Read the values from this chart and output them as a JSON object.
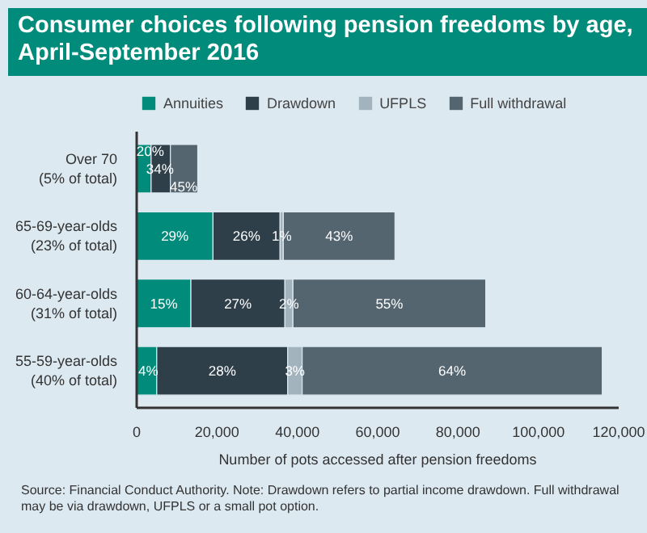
{
  "chart_data": {
    "type": "bar",
    "orientation": "horizontal",
    "stacked": true,
    "title": "Consumer choices following pension freedoms by age, April-September 2016",
    "categories": [
      "Over 70\n(5% of total)",
      "65-69-year-olds\n(23% of total)",
      "60-64-year-olds\n(31% of total)",
      "55-59-year-olds\n(40% of total)"
    ],
    "series": [
      {
        "name": "Annuities",
        "color": "#008b7a",
        "values": [
          3600,
          19000,
          13500,
          5000
        ]
      },
      {
        "name": "Drawdown",
        "color": "#2e3f4a",
        "values": [
          4800,
          16700,
          23400,
          32600
        ]
      },
      {
        "name": "UFPLS",
        "color": "#a3b3bd",
        "values": [
          null,
          800,
          2000,
          3600
        ]
      },
      {
        "name": "Full withdrawal",
        "color": "#546570",
        "values": [
          6800,
          27800,
          48000,
          74700
        ]
      }
    ],
    "xlim": [
      0,
      120000
    ],
    "xticks": [
      {
        "value": 0,
        "label": "0"
      },
      {
        "value": 20000,
        "label": "20,000"
      },
      {
        "value": 40000,
        "label": "40,000"
      },
      {
        "value": 60000,
        "label": "60,000"
      },
      {
        "value": 80000,
        "label": "80,000"
      },
      {
        "value": 100000,
        "label": "100,000"
      },
      {
        "value": 120000,
        "label": "120,000"
      }
    ],
    "xlabel": "Number of pots accessed after pension freedoms",
    "legend": "top",
    "grid": false,
    "annotations": [
      {
        "text": "20%",
        "x": 3400,
        "y": "Over 70\n(5% of total)"
      },
      {
        "text": "34%",
        "x": 5800,
        "y": "Over 70\n(5% of total)"
      },
      {
        "text": "45%",
        "x": 11700,
        "y": "Over 70\n(5% of total)"
      },
      {
        "text": "29%",
        "x": 9500,
        "y": "65-69-year-olds\n(23% of total)"
      },
      {
        "text": "26%",
        "x": 27350,
        "y": "65-69-year-olds\n(23% of total)"
      },
      {
        "text": "1%",
        "x": 36100,
        "y": "65-69-year-olds\n(23% of total)"
      },
      {
        "text": "43%",
        "x": 50400,
        "y": "65-69-year-olds\n(23% of total)"
      },
      {
        "text": "15%",
        "x": 6750,
        "y": "60-64-year-olds\n(31% of total)"
      },
      {
        "text": "27%",
        "x": 25200,
        "y": "60-64-year-olds\n(31% of total)"
      },
      {
        "text": "2%",
        "x": 37900,
        "y": "60-64-year-olds\n(31% of total)"
      },
      {
        "text": "55%",
        "x": 62900,
        "y": "60-64-year-olds\n(31% of total)"
      },
      {
        "text": "4%",
        "x": 2900,
        "y": "55-59-year-olds\n(40% of total)"
      },
      {
        "text": "28%",
        "x": 21300,
        "y": "55-59-year-olds\n(40% of total)"
      },
      {
        "text": "3%",
        "x": 39400,
        "y": "55-59-year-olds\n(40% of total)"
      },
      {
        "text": "64%",
        "x": 78550,
        "y": "55-59-year-olds\n(40% of total)"
      },
      "Source: Financial Conduct Authority.  Note: Drawdown refers to partial income drawdown. Full withdrawal may be via drawdown, UFPLS or a small pot option."
    ]
  }
}
